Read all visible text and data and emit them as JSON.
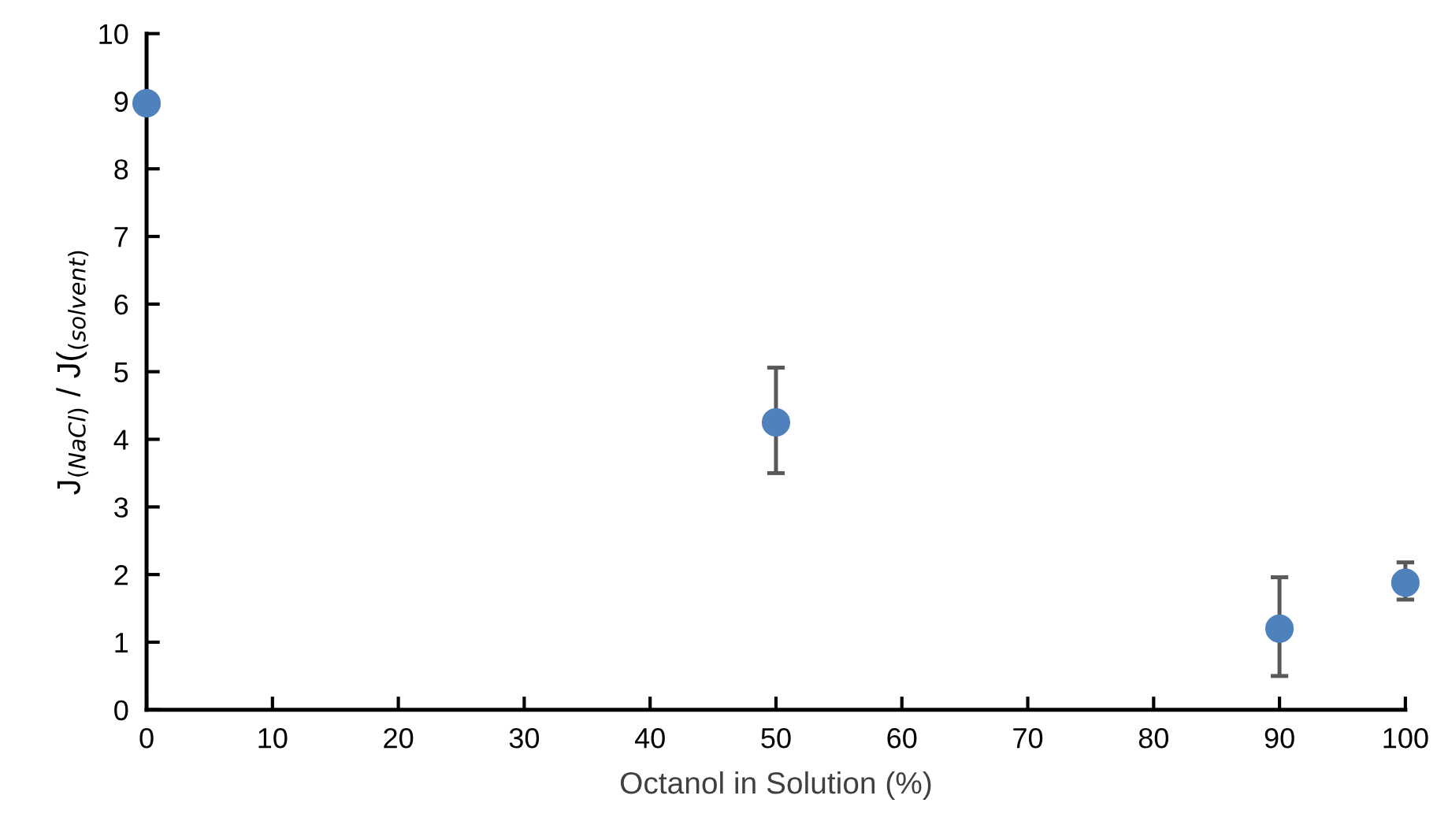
{
  "chart_data": {
    "type": "scatter",
    "xlabel": "Octanol in Solution (%)",
    "ylabel": "J$_{(NaCl)}$ / J($_{(solvent)}$",
    "x": [
      0,
      50,
      90,
      100
    ],
    "series": [
      {
        "color": "#4f81bd",
        "values": [
          8.97,
          4.25,
          1.2,
          1.88
        ],
        "errors": [
          null,
          [
            3.5,
            5.06
          ],
          [
            0.5,
            1.96
          ],
          [
            1.63,
            2.18
          ]
        ]
      }
    ],
    "xlim": [
      0,
      100
    ],
    "xticks": [
      0,
      10,
      20,
      30,
      40,
      50,
      60,
      70,
      80,
      90,
      100
    ],
    "ylim": [
      0,
      10
    ],
    "yticks": [
      0,
      1,
      2,
      3,
      4,
      5,
      6,
      7,
      8,
      9,
      10
    ],
    "grid": false,
    "legend": false,
    "marker": "circle"
  }
}
